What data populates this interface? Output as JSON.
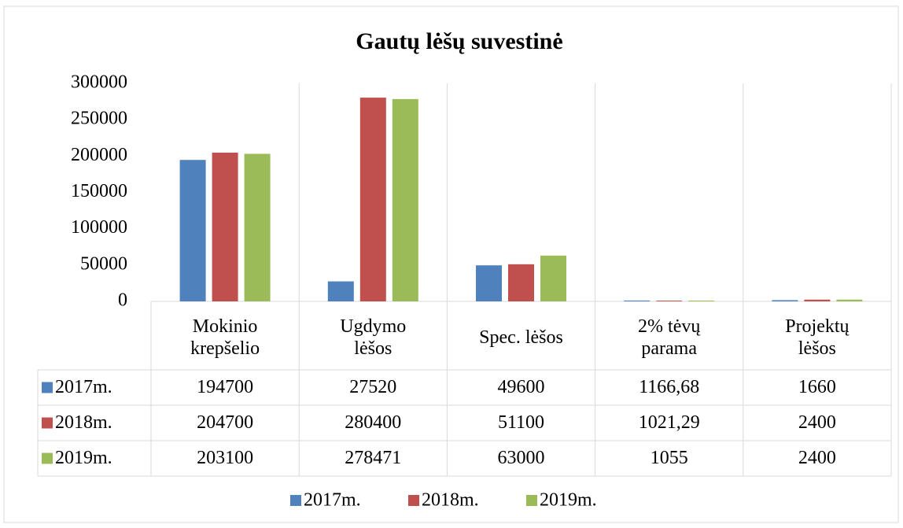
{
  "chart_data": {
    "type": "bar",
    "title": "Gautų lėšų suvestinė",
    "categories": [
      "Mokinio krepšelio",
      "Ugdymo lėšos",
      "Spec. lėšos",
      "2% tėvų parama",
      "Projektų lėšos"
    ],
    "series": [
      {
        "name": "2017m.",
        "color": "#4f81bd",
        "values": [
          194700,
          27520,
          49600,
          1166.68,
          1660
        ],
        "value_labels": [
          "194700",
          "27520",
          "49600",
          "1166,68",
          "1660"
        ]
      },
      {
        "name": "2018m.",
        "color": "#c0504d",
        "values": [
          204700,
          280400,
          51100,
          1021.29,
          2400
        ],
        "value_labels": [
          "204700",
          "280400",
          "51100",
          "1021,29",
          "2400"
        ]
      },
      {
        "name": "2019m.",
        "color": "#9bbb59",
        "values": [
          203100,
          278471,
          63000,
          1055,
          2400
        ]
      }
    ],
    "ylim": [
      0,
      300000
    ],
    "yticks": [
      0,
      50000,
      100000,
      150000,
      200000,
      250000,
      300000
    ],
    "grid": false,
    "legend": "bottom"
  }
}
